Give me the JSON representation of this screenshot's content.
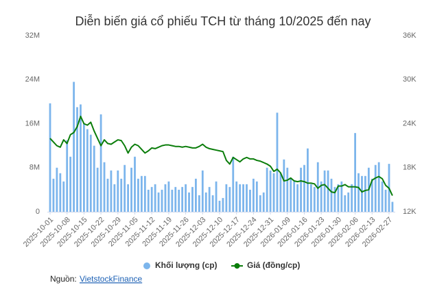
{
  "chart_data": {
    "type": "bar-line",
    "title": "Diễn biến giá cổ phiếu TCH từ tháng 10/2025 đến nay",
    "categories": [
      "2025-10-01",
      null,
      null,
      null,
      null,
      "2025-10-08",
      null,
      null,
      null,
      null,
      "2025-10-15",
      null,
      null,
      null,
      null,
      "2025-10-22",
      null,
      null,
      null,
      null,
      "2025-10-29",
      null,
      null,
      null,
      null,
      "2025-11-05",
      null,
      null,
      null,
      null,
      "2025-11-12",
      null,
      null,
      null,
      null,
      "2025-11-19",
      null,
      null,
      null,
      null,
      "2025-11-26",
      null,
      null,
      null,
      null,
      "2025-12-03",
      null,
      null,
      null,
      null,
      "2025-12-10",
      null,
      null,
      null,
      null,
      "2025-12-17",
      null,
      null,
      null,
      null,
      "2025-12-24",
      null,
      null,
      null,
      null,
      "2025-12-31",
      null,
      null,
      null,
      null,
      "2026-01-09",
      null,
      null,
      null,
      null,
      "2026-01-16",
      null,
      null,
      null,
      null,
      "2026-01-23",
      null,
      null,
      null,
      null,
      "2026-01-30",
      null,
      null,
      null,
      null,
      "2026-02-06",
      null,
      null,
      null,
      null,
      "2026-02-13",
      null,
      null,
      null,
      null,
      "2026-02-27",
      null
    ],
    "series": [
      {
        "name": "Khối lượng (cp)",
        "color": "#7cb5ec",
        "type": "bar",
        "axis": "y",
        "values": [
          19700000,
          6000000,
          8000000,
          7000000,
          5500000,
          13000000,
          10000000,
          23600000,
          19000000,
          19500000,
          16000000,
          15000000,
          14000000,
          12000000,
          8000000,
          17700000,
          9000000,
          6000000,
          7500000,
          5000000,
          7500000,
          6000000,
          8500000,
          5000000,
          8000000,
          10000000,
          6000000,
          6500000,
          6500000,
          4000000,
          4500000,
          5000000,
          3500000,
          4000000,
          5000000,
          5500000,
          4000000,
          4500000,
          4000000,
          4500000,
          5000000,
          3500000,
          4500000,
          6000000,
          3000000,
          7500000,
          3500000,
          4500000,
          3000000,
          5500000,
          2000000,
          2500000,
          5000000,
          4500000,
          10000000,
          5500000,
          5000000,
          5000000,
          5000000,
          4000000,
          6000000,
          5500000,
          3000000,
          3500000,
          8000000,
          7500000,
          7000000,
          18000000,
          7000000,
          9500000,
          8000000,
          6000000,
          5500000,
          5000000,
          8000000,
          8500000,
          11500000,
          5000000,
          4500000,
          9000000,
          5500000,
          7500000,
          7500000,
          6000000,
          4500000,
          5000000,
          5500000,
          3000000,
          3500000,
          5000000,
          14300000,
          7000000,
          6500000,
          6500000,
          8000000,
          6000000,
          8500000,
          9000000,
          5500000,
          4000000,
          8700000,
          1800000
        ]
      },
      {
        "name": "Giá (đồng/cp)",
        "color": "#0a7d0a",
        "type": "line",
        "axis": "y2",
        "values": [
          22000,
          21500,
          21000,
          20800,
          21800,
          21300,
          22500,
          22800,
          23600,
          25000,
          24000,
          23800,
          24200,
          23000,
          22000,
          21000,
          21800,
          21300,
          21200,
          21500,
          21800,
          21700,
          21000,
          20000,
          20800,
          21200,
          21000,
          20500,
          20000,
          20300,
          20700,
          20600,
          20800,
          21000,
          21100,
          21100,
          21000,
          20900,
          20900,
          20800,
          20900,
          20800,
          20700,
          20700,
          20900,
          21200,
          20800,
          20600,
          20500,
          20400,
          20300,
          20200,
          19000,
          18500,
          19400,
          19100,
          18800,
          19200,
          19400,
          19200,
          19200,
          19000,
          18900,
          18700,
          18500,
          18200,
          17500,
          17800,
          17300,
          16200,
          16300,
          16600,
          16200,
          16100,
          16200,
          16100,
          15900,
          15900,
          15800,
          15200,
          15600,
          15700,
          15200,
          14700,
          14600,
          15500,
          15500,
          15700,
          15400,
          15400,
          15400,
          15300,
          14700,
          14900,
          15000,
          16300,
          16600,
          16800,
          16500,
          15600,
          15200,
          14200
        ]
      }
    ],
    "ylim": [
      0,
      32000000
    ],
    "yticks": [
      0,
      {
        "value": 8000000,
        "label": "8M"
      },
      {
        "value": 16000000,
        "label": "16M"
      },
      {
        "value": 24000000,
        "label": "24M"
      },
      {
        "value": 32000000,
        "label": "32M"
      }
    ],
    "y2lim": [
      12000,
      36000
    ],
    "y2ticks": [
      {
        "value": 12000,
        "label": "12K"
      },
      {
        "value": 18000,
        "label": "18K"
      },
      {
        "value": 24000,
        "label": "24K"
      },
      {
        "value": 30000,
        "label": "30K"
      },
      {
        "value": 36000,
        "label": "36K"
      }
    ],
    "grid": false,
    "legend": "bottom",
    "source": {
      "label": "Nguồn:",
      "link": "VietstockFinance"
    }
  }
}
